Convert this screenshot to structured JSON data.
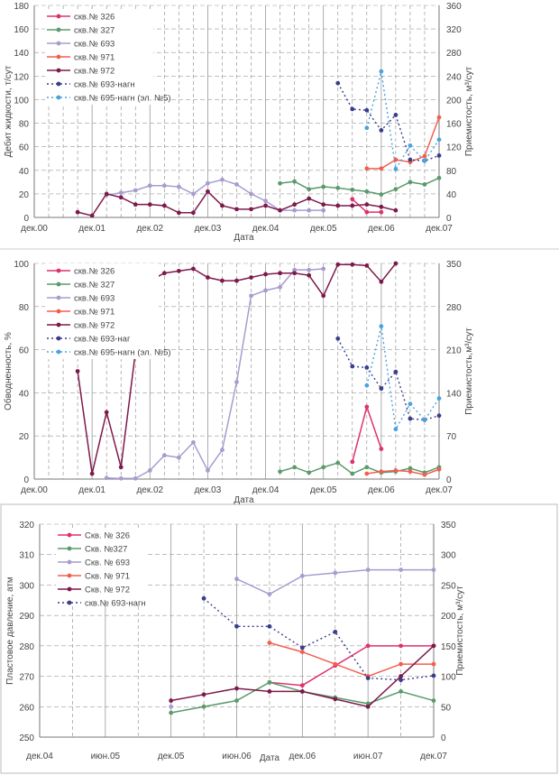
{
  "chart_data": [
    {
      "type": "line",
      "xlabel": "Дата",
      "ylabel": "Дебит жидкости, т/сут",
      "y2label": "Приемистость, м³/сут",
      "ylim": [
        0,
        180
      ],
      "ystep": 20,
      "y2lim": [
        0,
        360
      ],
      "y2step": 40,
      "grid": true,
      "legend": "top-left",
      "x": [
        "2000-12",
        "2001-03",
        "2001-06",
        "2001-09",
        "2001-12",
        "2002-03",
        "2002-06",
        "2002-09",
        "2002-12",
        "2003-03",
        "2003-06",
        "2003-09",
        "2003-12",
        "2004-03",
        "2004-06",
        "2004-09",
        "2004-12",
        "2005-03",
        "2005-06",
        "2005-09",
        "2005-12",
        "2006-03",
        "2006-06",
        "2006-09",
        "2006-12",
        "2007-03",
        "2007-06",
        "2007-09",
        "2007-12"
      ],
      "x_tick_labels": [
        "дек.00",
        "дек.01",
        "дек.02",
        "дек.03",
        "дек.04",
        "дек.05",
        "дек.06",
        "дек.07"
      ],
      "series": [
        {
          "name": "скв.№ 326",
          "axis": "y",
          "color": "#e0306e",
          "dashed": false,
          "values": [
            null,
            null,
            null,
            null,
            null,
            null,
            null,
            null,
            null,
            null,
            null,
            null,
            null,
            null,
            null,
            null,
            null,
            null,
            null,
            null,
            null,
            null,
            15.5,
            4.5,
            4.5,
            null,
            null,
            null,
            null
          ]
        },
        {
          "name": "скв.№ 327",
          "axis": "y",
          "color": "#5b9a6b",
          "dashed": false,
          "values": [
            null,
            null,
            null,
            null,
            null,
            null,
            null,
            null,
            null,
            null,
            null,
            null,
            null,
            null,
            null,
            null,
            null,
            29,
            30.5,
            24,
            26,
            25,
            23.5,
            22,
            19.5,
            24,
            30,
            28,
            33.5
          ]
        },
        {
          "name": "скв.№ 693",
          "axis": "y",
          "color": "#a99bd0",
          "dashed": false,
          "values": [
            null,
            null,
            null,
            null,
            null,
            19,
            21,
            23,
            27,
            27,
            26,
            20,
            29,
            32,
            28,
            20,
            14,
            6,
            6,
            6,
            6,
            null,
            null,
            null,
            null,
            null,
            null,
            null,
            null
          ]
        },
        {
          "name": "скв.№ 971",
          "axis": "y",
          "color": "#f0604e",
          "dashed": false,
          "values": [
            null,
            null,
            null,
            null,
            null,
            null,
            null,
            null,
            null,
            null,
            null,
            null,
            null,
            null,
            null,
            null,
            null,
            null,
            null,
            null,
            null,
            null,
            null,
            41.5,
            41.5,
            49,
            47,
            52,
            85
          ]
        },
        {
          "name": "скв.№ 972",
          "axis": "y",
          "color": "#7d1a4c",
          "dashed": false,
          "values": [
            null,
            null,
            null,
            4.5,
            1.5,
            20,
            17,
            11,
            11,
            10,
            4,
            4,
            22,
            10,
            7,
            7,
            10,
            6,
            11,
            16,
            11,
            10,
            10,
            11,
            9,
            6,
            null,
            null,
            null
          ]
        },
        {
          "name": "скв.№ 693-нагн",
          "axis": "y2",
          "color": "#3a3d8c",
          "dashed": true,
          "values": [
            null,
            null,
            null,
            null,
            null,
            null,
            null,
            null,
            null,
            null,
            null,
            null,
            null,
            null,
            null,
            null,
            null,
            null,
            null,
            null,
            null,
            228,
            184,
            182,
            148,
            174,
            98,
            96,
            105
          ]
        },
        {
          "name": "скв.№ 695-нагн (эл. №5)",
          "axis": "y2",
          "color": "#4aa3dc",
          "dashed": true,
          "values": [
            null,
            null,
            null,
            null,
            null,
            null,
            null,
            null,
            null,
            null,
            null,
            null,
            null,
            null,
            null,
            null,
            null,
            null,
            null,
            null,
            null,
            null,
            null,
            152,
            248,
            82,
            122,
            96,
            132
          ]
        }
      ]
    },
    {
      "type": "line",
      "xlabel": "Дата",
      "ylabel": "Обводненность, %",
      "y2label": "Приемистость,м³/сут",
      "ylim": [
        0,
        100
      ],
      "ystep": 20,
      "y2lim": [
        0,
        350
      ],
      "y2step": 70,
      "grid": true,
      "legend": "top-left",
      "x": [
        "2000-12",
        "2001-03",
        "2001-06",
        "2001-09",
        "2001-12",
        "2002-03",
        "2002-06",
        "2002-09",
        "2002-12",
        "2003-03",
        "2003-06",
        "2003-09",
        "2003-12",
        "2004-03",
        "2004-06",
        "2004-09",
        "2004-12",
        "2005-03",
        "2005-06",
        "2005-09",
        "2005-12",
        "2006-03",
        "2006-06",
        "2006-09",
        "2006-12",
        "2007-03",
        "2007-06",
        "2007-09",
        "2007-12"
      ],
      "x_tick_labels": [
        "дек.00",
        "дек.01",
        "дек.02",
        "дек.03",
        "дек.04",
        "дек.05",
        "дек.06",
        "дек.07"
      ],
      "series": [
        {
          "name": "скв.№ 326",
          "axis": "y",
          "color": "#e0306e",
          "dashed": false,
          "values": [
            null,
            null,
            null,
            null,
            null,
            null,
            null,
            null,
            null,
            null,
            null,
            null,
            null,
            null,
            null,
            null,
            null,
            null,
            null,
            null,
            null,
            null,
            8,
            33.5,
            14,
            null,
            null,
            null,
            null
          ]
        },
        {
          "name": "скв.№ 327",
          "axis": "y",
          "color": "#5b9a6b",
          "dashed": false,
          "values": [
            null,
            null,
            null,
            null,
            null,
            null,
            null,
            null,
            null,
            null,
            null,
            null,
            null,
            null,
            null,
            null,
            null,
            3.5,
            5.5,
            3,
            5.5,
            7.5,
            2.5,
            5.5,
            3,
            3.5,
            5,
            3,
            5.5
          ]
        },
        {
          "name": "скв.№ 693",
          "axis": "y",
          "color": "#a99bd0",
          "dashed": false,
          "values": [
            null,
            null,
            null,
            null,
            null,
            0.5,
            0.3,
            0.3,
            4,
            11,
            10,
            17,
            4,
            13.5,
            45,
            85,
            87.5,
            89,
            97,
            97,
            97.5,
            null,
            null,
            null,
            null,
            null,
            null,
            null,
            null
          ]
        },
        {
          "name": "скв.№ 971",
          "axis": "y",
          "color": "#f0604e",
          "dashed": false,
          "values": [
            null,
            null,
            null,
            null,
            null,
            null,
            null,
            null,
            null,
            null,
            null,
            null,
            null,
            null,
            null,
            null,
            null,
            null,
            null,
            null,
            null,
            null,
            null,
            2.5,
            3.5,
            4,
            3.5,
            2,
            4.5
          ]
        },
        {
          "name": "скв.№ 972",
          "axis": "y",
          "color": "#7d1a4c",
          "dashed": false,
          "values": [
            null,
            null,
            null,
            50,
            2.5,
            31,
            5.5,
            59,
            92,
            95.5,
            96.5,
            97.5,
            93.5,
            92,
            92,
            93.5,
            95,
            95.5,
            95.5,
            94.5,
            85,
            99.5,
            99.5,
            99,
            91.5,
            100,
            null,
            null,
            null
          ]
        },
        {
          "name": "скв.№ 693-наг",
          "axis": "y2",
          "color": "#3a3d8c",
          "dashed": true,
          "values": [
            null,
            null,
            null,
            null,
            null,
            null,
            null,
            null,
            null,
            null,
            null,
            null,
            null,
            null,
            null,
            null,
            null,
            null,
            null,
            null,
            null,
            228,
            183,
            181,
            147,
            174,
            98,
            96,
            103
          ]
        },
        {
          "name": "скв.№ 695-нагн (эл. №5)",
          "axis": "y2",
          "color": "#4aa3dc",
          "dashed": true,
          "values": [
            null,
            null,
            null,
            null,
            null,
            null,
            null,
            null,
            null,
            null,
            null,
            null,
            null,
            null,
            null,
            null,
            null,
            null,
            null,
            null,
            null,
            null,
            null,
            152,
            248,
            81,
            122,
            96,
            131
          ]
        }
      ]
    },
    {
      "type": "line",
      "xlabel": "Дата",
      "ylabel": "Пластовое давление, атм",
      "y2label": "Приемистость, м³/сут",
      "ylim": [
        250,
        320
      ],
      "ystep": 10,
      "y2lim": [
        0,
        350
      ],
      "y2step": 50,
      "grid": true,
      "legend": "top-left",
      "x": [
        "2004-12",
        "2005-03",
        "2005-06",
        "2005-09",
        "2005-12",
        "2006-03",
        "2006-06",
        "2006-09",
        "2006-12",
        "2007-03",
        "2007-06",
        "2007-09",
        "2007-12"
      ],
      "x_tick_labels": [
        "дек.04",
        "июн.05",
        "дек.05",
        "июн.06",
        "дек.06",
        "июн.07",
        "дек.07"
      ],
      "series": [
        {
          "name": "Скв. № 326",
          "axis": "y",
          "color": "#e0306e",
          "dashed": false,
          "values": [
            null,
            null,
            null,
            null,
            null,
            null,
            null,
            268,
            267,
            273.5,
            280,
            280,
            280
          ]
        },
        {
          "name": "Скв. №327",
          "axis": "y",
          "color": "#5b9a6b",
          "dashed": false,
          "values": [
            null,
            null,
            null,
            null,
            258,
            260,
            262,
            268,
            265,
            263,
            261,
            265,
            262
          ]
        },
        {
          "name": "Скв. № 693",
          "axis": "y",
          "color": "#a99bd0",
          "dashed": false,
          "values": [
            null,
            null,
            null,
            null,
            260,
            null,
            302,
            297,
            303,
            304,
            305,
            305,
            305
          ]
        },
        {
          "name": "Скв. № 971",
          "axis": "y",
          "color": "#f0604e",
          "dashed": false,
          "values": [
            null,
            null,
            null,
            null,
            null,
            null,
            null,
            281,
            278,
            274,
            270,
            274,
            274
          ]
        },
        {
          "name": "Скв. № 972",
          "axis": "y",
          "color": "#7d1a4c",
          "dashed": false,
          "values": [
            null,
            null,
            null,
            null,
            262,
            264,
            266,
            265,
            265,
            262.5,
            260,
            270,
            280
          ]
        },
        {
          "name": "скв.№ 693-нагн",
          "axis": "y2",
          "color": "#3a3d8c",
          "dashed": true,
          "values": [
            null,
            null,
            null,
            null,
            null,
            228,
            182,
            182,
            147,
            173,
            97,
            94,
            101
          ]
        }
      ]
    }
  ]
}
